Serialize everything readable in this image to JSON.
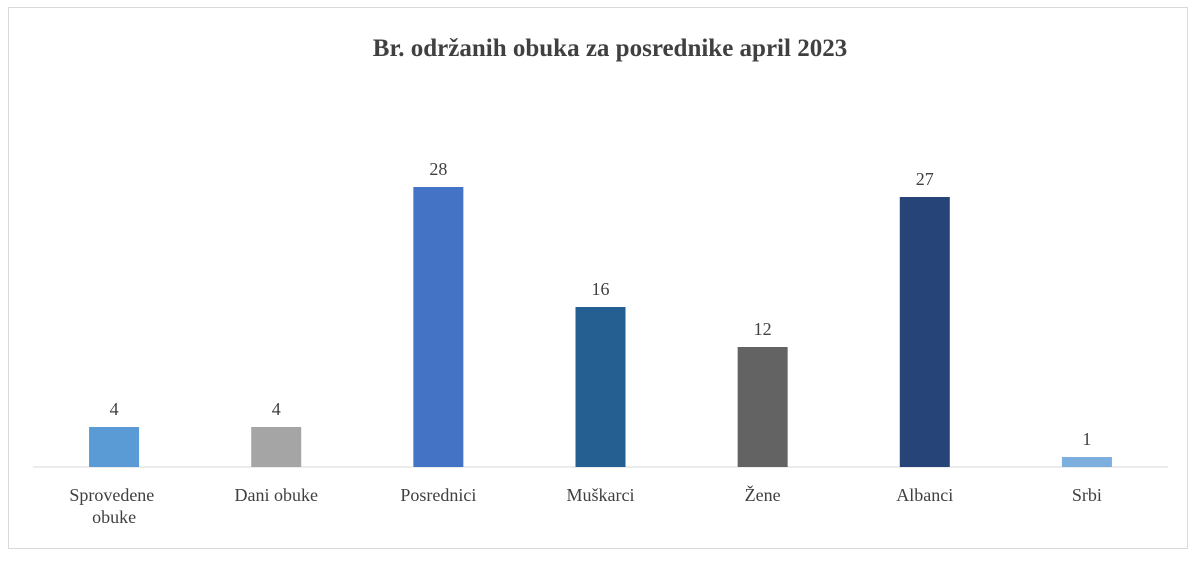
{
  "chart_data": {
    "type": "bar",
    "title": "Br. održanih  obuka za posrednike april 2023",
    "categories": [
      "Sprovedene obuke",
      "Dani obuke",
      "Posrednici",
      "Muškarci",
      "Žene",
      "Albanci",
      "Srbi"
    ],
    "values": [
      4,
      4,
      28,
      16,
      12,
      27,
      1
    ],
    "colors": [
      "#5b9bd5",
      "#a5a5a5",
      "#4472c4",
      "#255e91",
      "#636363",
      "#264478",
      "#7cafdd"
    ]
  }
}
